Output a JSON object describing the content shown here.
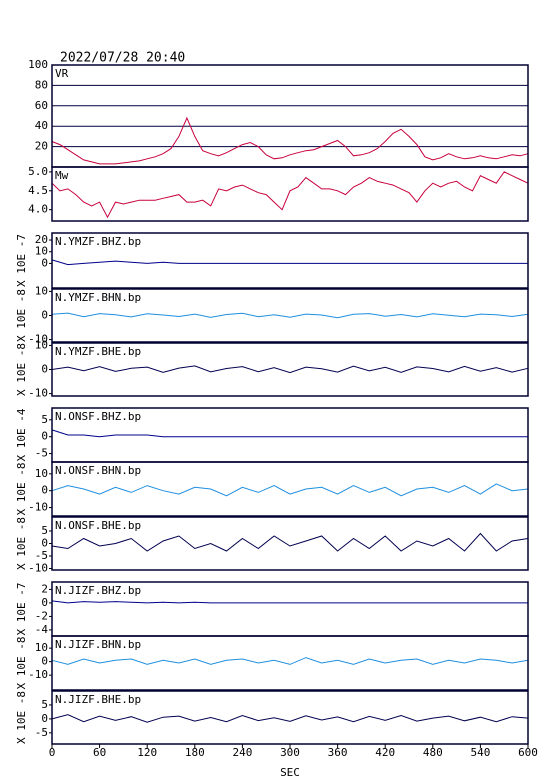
{
  "chart_data": [
    {
      "type": "line",
      "title": "2022/07/28 20:40",
      "label": "VR",
      "color": "#c8003c",
      "grid": true,
      "x": [
        0,
        10,
        20,
        30,
        40,
        50,
        60,
        70,
        80,
        90,
        100,
        110,
        120,
        130,
        140,
        150,
        160,
        170,
        180,
        190,
        200,
        210,
        220,
        230,
        240,
        250,
        260,
        270,
        280,
        290,
        300,
        310,
        320,
        330,
        340,
        350,
        360,
        370,
        380,
        390,
        400,
        410,
        420,
        430,
        440,
        450,
        460,
        470,
        480,
        490,
        500,
        510,
        520,
        530,
        540,
        550,
        560,
        570,
        580,
        590,
        600
      ],
      "values": [
        25,
        22,
        17,
        12,
        7,
        5,
        3,
        3,
        3,
        4,
        5,
        6,
        8,
        10,
        13,
        18,
        30,
        48,
        30,
        16,
        13,
        11,
        14,
        18,
        22,
        24,
        20,
        12,
        8,
        9,
        12,
        14,
        16,
        17,
        20,
        23,
        26,
        20,
        11,
        12,
        14,
        18,
        25,
        33,
        37,
        30,
        22,
        10,
        7,
        9,
        13,
        10,
        8,
        9,
        11,
        9,
        8,
        10,
        12,
        11,
        13
      ],
      "xlim": [
        0,
        600
      ],
      "ylim": [
        0,
        100
      ],
      "yticks": [
        20,
        40,
        60,
        80,
        100
      ]
    },
    {
      "type": "line",
      "label": "Mw",
      "color": "#c8003c",
      "grid": false,
      "x": [
        0,
        10,
        20,
        30,
        40,
        50,
        60,
        70,
        80,
        90,
        100,
        110,
        120,
        130,
        140,
        150,
        160,
        170,
        180,
        190,
        200,
        210,
        220,
        230,
        240,
        250,
        260,
        270,
        280,
        290,
        300,
        310,
        320,
        330,
        340,
        350,
        360,
        370,
        380,
        390,
        400,
        410,
        420,
        430,
        440,
        450,
        460,
        470,
        480,
        490,
        500,
        510,
        520,
        530,
        540,
        550,
        560,
        570,
        580,
        590,
        600
      ],
      "values": [
        4.7,
        4.5,
        4.55,
        4.4,
        4.2,
        4.1,
        4.2,
        3.8,
        4.2,
        4.15,
        4.2,
        4.25,
        4.25,
        4.25,
        4.3,
        4.35,
        4.4,
        4.2,
        4.2,
        4.25,
        4.1,
        4.55,
        4.5,
        4.6,
        4.65,
        4.55,
        4.45,
        4.4,
        4.2,
        4.0,
        4.5,
        4.6,
        4.85,
        4.7,
        4.55,
        4.55,
        4.5,
        4.4,
        4.6,
        4.7,
        4.85,
        4.75,
        4.7,
        4.65,
        4.55,
        4.45,
        4.2,
        4.5,
        4.7,
        4.6,
        4.7,
        4.75,
        4.6,
        4.5,
        4.9,
        4.8,
        4.7,
        5.0,
        4.9,
        4.8,
        4.7
      ],
      "xlim": [
        0,
        600
      ],
      "ylim": [
        3.7,
        5.13
      ],
      "yticks": [
        {
          "value": 4,
          "label": "4.0"
        },
        {
          "value": 4.5,
          "label": "4.5"
        },
        {
          "value": 5,
          "label": "5.0"
        }
      ]
    },
    {
      "type": "line",
      "label": "N.YMZF.BHZ.bp",
      "y_label": "X 10E -7",
      "color": "#00008b",
      "grid": false,
      "x": [
        0,
        20,
        40,
        60,
        80,
        100,
        120,
        140,
        160,
        180,
        200,
        220,
        240,
        260,
        280,
        300,
        320,
        340,
        360,
        380,
        400,
        420,
        440,
        460,
        480,
        500,
        520,
        540,
        560,
        580,
        600
      ],
      "values": [
        3,
        -1,
        0,
        1,
        2,
        1,
        0,
        1,
        0,
        0,
        0,
        0,
        0,
        0,
        0,
        0,
        0,
        0,
        0,
        0,
        0,
        0,
        0,
        0,
        0,
        0,
        0,
        0,
        0,
        0,
        0
      ],
      "xlim": [
        0,
        600
      ],
      "ylim": [
        -21,
        26
      ],
      "yticks": [
        0,
        10,
        20
      ]
    },
    {
      "type": "line",
      "label": "N.YMZF.BHN.bp",
      "y_label": "X 10E -8",
      "color": "#1f8fdf",
      "grid": false,
      "x": [
        0,
        20,
        40,
        60,
        80,
        100,
        120,
        140,
        160,
        180,
        200,
        220,
        240,
        260,
        280,
        300,
        320,
        340,
        360,
        380,
        400,
        420,
        440,
        460,
        480,
        500,
        520,
        540,
        560,
        580,
        600
      ],
      "values": [
        0.5,
        1,
        -0.5,
        0.8,
        0.3,
        -0.6,
        0.7,
        0.2,
        -0.4,
        0.6,
        -0.8,
        0.4,
        0.9,
        -0.5,
        0.3,
        -0.7,
        0.6,
        0.2,
        -0.9,
        0.5,
        0.8,
        -0.3,
        0.4,
        -0.6,
        0.7,
        0.1,
        -0.5,
        0.6,
        0.3,
        -0.4,
        0.5
      ],
      "xlim": [
        0,
        600
      ],
      "ylim": [
        -11,
        11
      ],
      "yticks": [
        -10,
        0,
        10
      ]
    },
    {
      "type": "line",
      "label": "N.YMZF.BHE.bp",
      "y_label": "X 10E -8",
      "color": "#000050",
      "grid": false,
      "x": [
        0,
        20,
        40,
        60,
        80,
        100,
        120,
        140,
        160,
        180,
        200,
        220,
        240,
        260,
        280,
        300,
        320,
        340,
        360,
        380,
        400,
        420,
        440,
        460,
        480,
        500,
        520,
        540,
        560,
        580,
        600
      ],
      "values": [
        0,
        1,
        -0.5,
        1.2,
        -0.8,
        0.5,
        1,
        -1.2,
        0.6,
        1.5,
        -1,
        0.4,
        1.2,
        -0.9,
        0.8,
        -1.3,
        1,
        0.3,
        -1.1,
        1.4,
        -0.6,
        0.9,
        -1.2,
        1.1,
        0.4,
        -1,
        1.3,
        -0.7,
        0.8,
        -1.1,
        0.5
      ],
      "xlim": [
        0,
        600
      ],
      "ylim": [
        -11,
        11
      ],
      "yticks": [
        -10,
        0,
        10
      ]
    },
    {
      "type": "line",
      "label": "N.ONSF.BHZ.bp",
      "y_label": "X 10E -4",
      "color": "#00008b",
      "grid": false,
      "x": [
        0,
        20,
        40,
        60,
        80,
        100,
        120,
        140,
        160,
        180,
        200,
        220,
        240,
        260,
        280,
        300,
        320,
        340,
        360,
        380,
        400,
        420,
        440,
        460,
        480,
        500,
        520,
        540,
        560,
        580,
        600
      ],
      "values": [
        2,
        0.5,
        0.5,
        0,
        0.5,
        0.5,
        0.5,
        0,
        0,
        0,
        0,
        0,
        0,
        0,
        0,
        0,
        0,
        0,
        0,
        0,
        0,
        0,
        0,
        0,
        0,
        0,
        0,
        0,
        0,
        0,
        0
      ],
      "xlim": [
        0,
        600
      ],
      "ylim": [
        -7.5,
        8.5
      ],
      "yticks": [
        -5,
        0,
        5
      ]
    },
    {
      "type": "line",
      "label": "N.ONSF.BHN.bp",
      "y_label": "X 10E -8",
      "color": "#1f8fdf",
      "grid": false,
      "x": [
        0,
        20,
        40,
        60,
        80,
        100,
        120,
        140,
        160,
        180,
        200,
        220,
        240,
        260,
        280,
        300,
        320,
        340,
        360,
        380,
        400,
        420,
        440,
        460,
        480,
        500,
        520,
        540,
        560,
        580,
        600
      ],
      "values": [
        0,
        3,
        1,
        -2,
        2,
        -1,
        3,
        0,
        -2,
        2,
        1,
        -3,
        2,
        -1,
        3,
        -2,
        1,
        2,
        -2,
        3,
        -1,
        2,
        -3,
        1,
        2,
        -1,
        3,
        -2,
        4,
        0,
        1
      ],
      "xlim": [
        0,
        600
      ],
      "ylim": [
        -15,
        17
      ],
      "yticks": [
        -10,
        0,
        10
      ]
    },
    {
      "type": "line",
      "label": "N.ONSF.BHE.bp",
      "y_label": "X 10E -8",
      "color": "#000050",
      "grid": false,
      "x": [
        0,
        20,
        40,
        60,
        80,
        100,
        120,
        140,
        160,
        180,
        200,
        220,
        240,
        260,
        280,
        300,
        320,
        340,
        360,
        380,
        400,
        420,
        440,
        460,
        480,
        500,
        520,
        540,
        560,
        580,
        600
      ],
      "values": [
        -1,
        -2,
        2,
        -1,
        0,
        2,
        -3,
        1,
        3,
        -2,
        0,
        -3,
        2,
        -2,
        3,
        -1,
        1,
        3,
        -3,
        2,
        -2,
        3,
        -3,
        1,
        -1,
        2,
        -3,
        4,
        -3,
        1,
        2
      ],
      "xlim": [
        0,
        600
      ],
      "ylim": [
        -10.6,
        10.6
      ],
      "yticks": [
        -10,
        -5,
        0,
        5
      ]
    },
    {
      "type": "line",
      "label": "N.JIZF.BHZ.bp",
      "y_label": "X 10E -7",
      "color": "#00008b",
      "grid": false,
      "x": [
        0,
        20,
        40,
        60,
        80,
        100,
        120,
        140,
        160,
        180,
        200,
        220,
        240,
        260,
        280,
        300,
        320,
        340,
        360,
        380,
        400,
        420,
        440,
        460,
        480,
        500,
        520,
        540,
        560,
        580,
        600
      ],
      "values": [
        0.3,
        0,
        0.2,
        0.1,
        0.2,
        0.1,
        0,
        0.1,
        0,
        0.1,
        0,
        0,
        0,
        0,
        0,
        0,
        0,
        0,
        0,
        0,
        0,
        0,
        0,
        0,
        0,
        0,
        0,
        0,
        0,
        0,
        0
      ],
      "xlim": [
        0,
        600
      ],
      "ylim": [
        -4.9,
        3.1
      ],
      "yticks": [
        -4,
        -2,
        0,
        2
      ]
    },
    {
      "type": "line",
      "label": "N.JIZF.BHN.bp",
      "y_label": "X 10E -8",
      "color": "#1f8fdf",
      "grid": false,
      "x": [
        0,
        20,
        40,
        60,
        80,
        100,
        120,
        140,
        160,
        180,
        200,
        220,
        240,
        260,
        280,
        300,
        320,
        340,
        360,
        380,
        400,
        420,
        440,
        460,
        480,
        500,
        520,
        540,
        560,
        580,
        600
      ],
      "values": [
        1,
        -2,
        2,
        -1,
        1,
        2,
        -2,
        1,
        -1,
        2,
        -2,
        1,
        2,
        -1,
        1,
        -2,
        3,
        -1,
        1,
        -2,
        2,
        -1,
        1,
        2,
        -2,
        1,
        -1,
        2,
        1,
        -1,
        1
      ],
      "xlim": [
        0,
        600
      ],
      "ylim": [
        -21,
        19
      ],
      "yticks": [
        -10,
        0,
        10
      ]
    },
    {
      "type": "line",
      "label": "N.JIZF.BHE.bp",
      "y_label": "X 10E -8",
      "color": "#000050",
      "grid": false,
      "x": [
        0,
        20,
        40,
        60,
        80,
        100,
        120,
        140,
        160,
        180,
        200,
        220,
        240,
        260,
        280,
        300,
        320,
        340,
        360,
        380,
        400,
        420,
        440,
        460,
        480,
        500,
        520,
        540,
        560,
        580,
        600
      ],
      "values": [
        0,
        1.5,
        -1,
        1,
        -0.5,
        0.8,
        -1.2,
        0.6,
        1,
        -0.8,
        0.5,
        -1,
        1.2,
        -0.6,
        0.4,
        -0.9,
        1.1,
        -0.4,
        0.7,
        -1,
        0.9,
        -0.5,
        1.2,
        -0.8,
        0.3,
        1,
        -0.7,
        0.6,
        -1,
        0.8,
        0.3
      ],
      "xlim": [
        0,
        600
      ],
      "ylim": [
        -9,
        10
      ],
      "yticks": [
        -5,
        0,
        5
      ],
      "xticks": [
        0,
        60,
        120,
        180,
        240,
        300,
        360,
        420,
        480,
        540,
        600
      ],
      "x_label": "SEC"
    }
  ]
}
